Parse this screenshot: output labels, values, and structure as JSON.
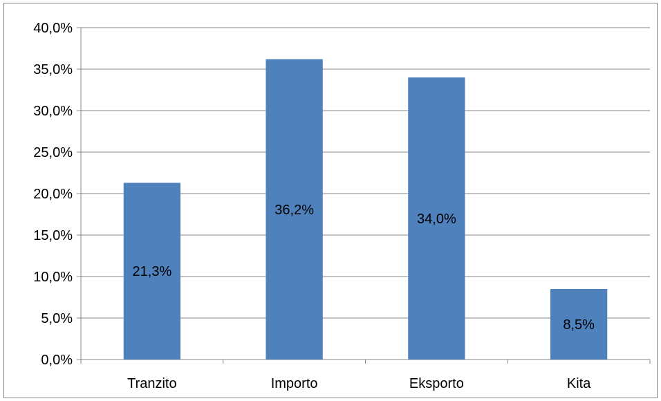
{
  "chart_data": {
    "type": "bar",
    "title": "",
    "xlabel": "",
    "ylabel": "",
    "categories": [
      "Tranzito",
      "Importo",
      "Eksporto",
      "Kita"
    ],
    "values": [
      21.3,
      36.2,
      34.0,
      8.5
    ],
    "data_labels": [
      "21,3%",
      "36,2%",
      "34,0%",
      "8,5%"
    ],
    "ylim": [
      0,
      40
    ],
    "yticks": [
      0,
      5,
      10,
      15,
      20,
      25,
      30,
      35,
      40
    ],
    "ytick_labels": [
      "0,0%",
      "5,0%",
      "10,0%",
      "15,0%",
      "20,0%",
      "25,0%",
      "30,0%",
      "35,0%",
      "40,0%"
    ],
    "grid": true,
    "legend": "none",
    "bar_color": "#4f81bd",
    "grid_color": "#868686"
  }
}
